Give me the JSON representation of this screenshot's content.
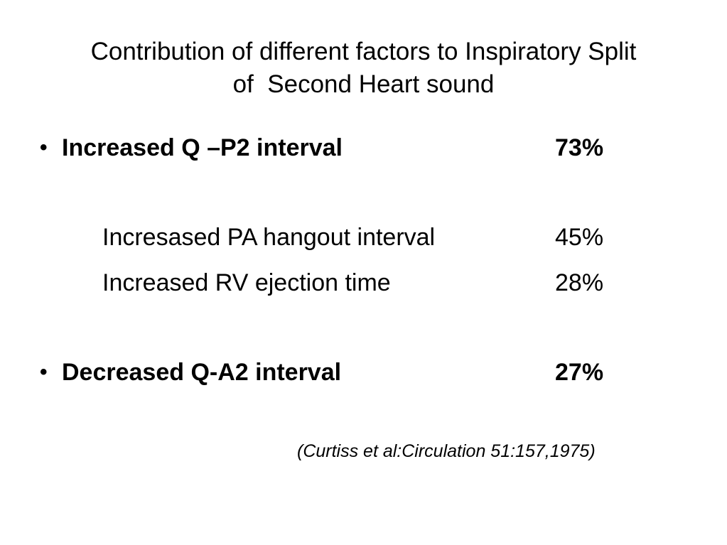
{
  "slide": {
    "title_line1": "Contribution of different factors to Inspiratory Split",
    "title_line2": "of  Second Heart sound",
    "bullet_symbol": "•",
    "rows": [
      {
        "label": "Increased Q –P2 interval",
        "value": "73%"
      },
      {
        "label": "Incresased PA hangout interval",
        "value": "45%"
      },
      {
        "label": "Increased RV ejection time",
        "value": "28%"
      },
      {
        "label": "Decreased Q-A2 interval",
        "value": "27%"
      }
    ],
    "citation": "(Curtiss et al:Circulation 51:157,1975)"
  }
}
